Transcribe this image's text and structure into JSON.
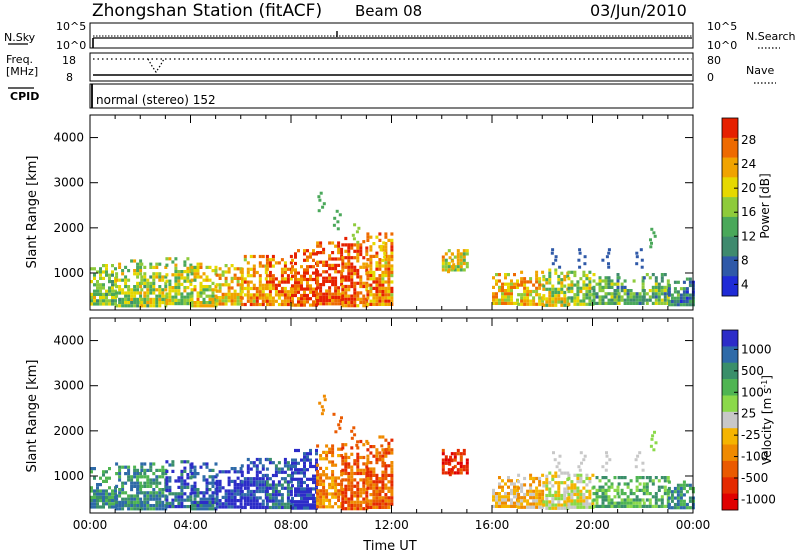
{
  "header": {
    "station_title": "Zhongshan Station (fitACF)",
    "beam_label": "Beam 08",
    "date_label": "03/Jun/2010"
  },
  "status_panels": {
    "nsky_label": "N.Sky",
    "nsky_ticks": [
      "10^5",
      "10^0"
    ],
    "nsearch_label": "N.Search",
    "nsearch_ticks": [
      "10^5",
      "10^0"
    ],
    "freq_label_line1": "Freq.",
    "freq_label_line2": "[MHz]",
    "freq_ticks": [
      "18",
      "8"
    ],
    "nave_label": "Nave",
    "nave_ticks": [
      "80",
      "0"
    ],
    "cpid_label": "CPID",
    "cpid_value": "normal (stereo) 152"
  },
  "colors": {
    "power_scale": [
      "#1f2bd6",
      "#2f59a8",
      "#3f8a6e",
      "#4aa85a",
      "#8ecb3b",
      "#e6d800",
      "#f0a300",
      "#ee6a00",
      "#e62000"
    ],
    "velocity_scale": [
      "#2c2cc8",
      "#2e6aa8",
      "#3a8f6a",
      "#4fb552",
      "#8bd94a",
      "#c8c8c8",
      "#f5b400",
      "#ef8a00",
      "#ea5a00",
      "#e52a00",
      "#e00000"
    ]
  },
  "chart_data": [
    {
      "type": "heatmap",
      "name": "power-panel",
      "ylabel": "Slant Range [km]",
      "yticks": [
        "4000",
        "3000",
        "2000",
        "1000"
      ],
      "ylim": [
        180,
        4500
      ],
      "xlim": [
        "00:00",
        "24:00"
      ],
      "colorbar_label": "Power [dB]",
      "colorbar_ticks": [
        "28",
        "24",
        "20",
        "16",
        "12",
        "8",
        "4"
      ],
      "colorbar_range": [
        0,
        30
      ],
      "x_hours": [
        0,
        1,
        2,
        3,
        4,
        5,
        6,
        7,
        8,
        9,
        10,
        11,
        12,
        13,
        14,
        15,
        16,
        17,
        18,
        19,
        20,
        21,
        22,
        23,
        24
      ],
      "echo_range_km": [
        [
          300,
          1200
        ],
        [
          300,
          1300
        ],
        [
          300,
          1300
        ],
        [
          300,
          1350
        ],
        [
          300,
          1300
        ],
        [
          300,
          1200
        ],
        [
          300,
          1400
        ],
        [
          300,
          1400
        ],
        [
          300,
          1600
        ],
        [
          300,
          1700
        ],
        [
          300,
          1800
        ],
        [
          300,
          1900
        ],
        [
          0,
          0
        ],
        [
          0,
          0
        ],
        [
          1100,
          1600
        ],
        [
          0,
          0
        ],
        [
          300,
          1000
        ],
        [
          300,
          1050
        ],
        [
          300,
          1100
        ],
        [
          300,
          1050
        ],
        [
          300,
          1000
        ],
        [
          300,
          1000
        ],
        [
          300,
          1000
        ],
        [
          300,
          900
        ]
      ],
      "mean_power_db": [
        14,
        15,
        15,
        16,
        18,
        20,
        22,
        24,
        26,
        27,
        25,
        22,
        0,
        0,
        18,
        0,
        20,
        20,
        16,
        14,
        12,
        12,
        12,
        8
      ],
      "scattered_echoes": [
        {
          "time_h": 9.2,
          "range_km": 2800,
          "power_db": 10
        },
        {
          "time_h": 9.8,
          "range_km": 2400,
          "power_db": 12
        },
        {
          "time_h": 10.5,
          "range_km": 2100,
          "power_db": 14
        },
        {
          "time_h": 11.6,
          "range_km": 1700,
          "power_db": 18
        },
        {
          "time_h": 14.3,
          "range_km": 1450,
          "power_db": 20
        },
        {
          "time_h": 18.5,
          "range_km": 1550,
          "power_db": 6
        },
        {
          "time_h": 19.5,
          "range_km": 1550,
          "power_db": 5
        },
        {
          "time_h": 20.5,
          "range_km": 1550,
          "power_db": 6
        },
        {
          "time_h": 21.8,
          "range_km": 1550,
          "power_db": 5
        },
        {
          "time_h": 22.4,
          "range_km": 2000,
          "power_db": 10
        }
      ]
    },
    {
      "type": "heatmap",
      "name": "velocity-panel",
      "ylabel": "Slant Range [km]",
      "yticks": [
        "4000",
        "3000",
        "2000",
        "1000"
      ],
      "ylim": [
        180,
        4500
      ],
      "xlim": [
        "00:00",
        "24:00"
      ],
      "xlabel": "Time UT",
      "xticks": [
        "00:00",
        "04:00",
        "08:00",
        "12:00",
        "16:00",
        "20:00",
        "00:00"
      ],
      "colorbar_label": "Velocity [m s^-1]",
      "colorbar_ticks": [
        "1000",
        "500",
        "100",
        "25",
        "-25",
        "-100",
        "-500",
        "-1000"
      ],
      "echo_range_km": [
        [
          300,
          1200
        ],
        [
          300,
          1300
        ],
        [
          300,
          1300
        ],
        [
          300,
          1350
        ],
        [
          300,
          1300
        ],
        [
          300,
          1200
        ],
        [
          300,
          1400
        ],
        [
          300,
          1400
        ],
        [
          300,
          1600
        ],
        [
          300,
          1700
        ],
        [
          300,
          1800
        ],
        [
          300,
          1900
        ],
        [
          0,
          0
        ],
        [
          0,
          0
        ],
        [
          1100,
          1600
        ],
        [
          0,
          0
        ],
        [
          300,
          1000
        ],
        [
          300,
          1050
        ],
        [
          300,
          1100
        ],
        [
          300,
          1050
        ],
        [
          300,
          1000
        ],
        [
          300,
          1000
        ],
        [
          300,
          1000
        ],
        [
          300,
          900
        ]
      ],
      "mean_velocity_class": [
        2,
        2,
        2,
        1,
        1,
        0,
        0,
        1,
        0,
        7,
        8,
        8,
        0,
        0,
        9,
        0,
        6,
        6,
        5,
        5,
        3,
        3,
        3,
        2
      ],
      "scattered_echoes": [
        {
          "time_h": 9.2,
          "range_km": 2800,
          "class": 7
        },
        {
          "time_h": 9.8,
          "range_km": 2400,
          "class": 8
        },
        {
          "time_h": 10.5,
          "range_km": 2100,
          "class": 8
        },
        {
          "time_h": 11.6,
          "range_km": 1700,
          "class": 8
        },
        {
          "time_h": 14.3,
          "range_km": 1450,
          "class": 9
        },
        {
          "time_h": 18.5,
          "range_km": 1550,
          "class": 5
        },
        {
          "time_h": 19.5,
          "range_km": 1550,
          "class": 5
        },
        {
          "time_h": 20.5,
          "range_km": 1550,
          "class": 5
        },
        {
          "time_h": 21.8,
          "range_km": 1550,
          "class": 5
        },
        {
          "time_h": 22.4,
          "range_km": 2000,
          "class": 4
        }
      ]
    }
  ]
}
